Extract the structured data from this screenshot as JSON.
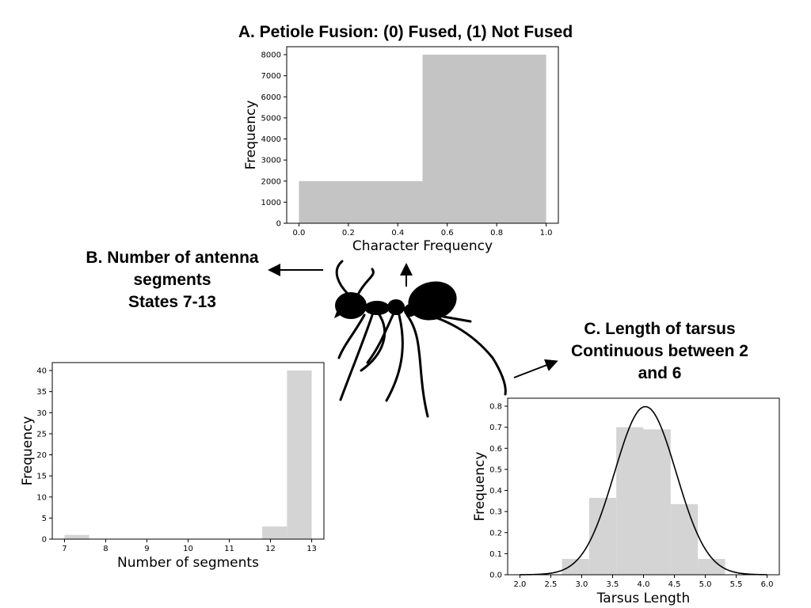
{
  "titles": {
    "a": "A. Petiole Fusion: (0) Fused, (1) Not Fused",
    "b": [
      "B. Number of antenna",
      "segments",
      "States 7-13"
    ],
    "c": [
      "C. Length of tarsus",
      "Continuous between 2",
      "and 6"
    ]
  },
  "illustration": {
    "icon": "ant-silhouette-icon",
    "color": "#000000"
  },
  "chart_data": [
    {
      "id": "A",
      "type": "bar",
      "xlabel": "Character Frequency",
      "ylabel": "Frequency",
      "xlim": [
        0.0,
        1.0
      ],
      "ylim": [
        0,
        8000
      ],
      "xticks": [
        "0.0",
        "0.2",
        "0.4",
        "0.6",
        "0.8",
        "1.0"
      ],
      "yticks": [
        "0",
        "1000",
        "2000",
        "3000",
        "4000",
        "5000",
        "6000",
        "7000",
        "8000"
      ],
      "bins": [
        {
          "x0": 0.0,
          "x1": 0.5,
          "value": 2000
        },
        {
          "x0": 0.5,
          "x1": 1.0,
          "value": 8000
        }
      ],
      "bar_color": "#c4c4c4"
    },
    {
      "id": "B",
      "type": "bar",
      "xlabel": "Number of segments",
      "ylabel": "Frequency",
      "xlim": [
        7,
        13
      ],
      "ylim": [
        0,
        40
      ],
      "xticks": [
        "7",
        "8",
        "9",
        "10",
        "11",
        "12",
        "13"
      ],
      "yticks": [
        "0",
        "5",
        "10",
        "15",
        "20",
        "25",
        "30",
        "35",
        "40"
      ],
      "bins": [
        {
          "x0": 7.0,
          "x1": 7.6,
          "value": 1
        },
        {
          "x0": 11.8,
          "x1": 12.4,
          "value": 3
        },
        {
          "x0": 12.4,
          "x1": 13.0,
          "value": 40
        }
      ],
      "bar_color": "#d4d4d4"
    },
    {
      "id": "C",
      "type": "bar",
      "xlabel": "Tarsus Length",
      "ylabel": "Frequency",
      "xlim": [
        2.0,
        6.0
      ],
      "ylim": [
        0.0,
        0.8
      ],
      "xticks": [
        "2.0",
        "2.5",
        "3.0",
        "3.5",
        "4.0",
        "4.5",
        "5.0",
        "5.5",
        "6.0"
      ],
      "yticks": [
        "0.0",
        "0.1",
        "0.2",
        "0.3",
        "0.4",
        "0.5",
        "0.6",
        "0.7",
        "0.8"
      ],
      "bins": [
        {
          "x0": 2.68,
          "x1": 3.12,
          "value": 0.075
        },
        {
          "x0": 3.12,
          "x1": 3.56,
          "value": 0.365
        },
        {
          "x0": 3.56,
          "x1": 4.0,
          "value": 0.7
        },
        {
          "x0": 4.0,
          "x1": 4.44,
          "value": 0.69
        },
        {
          "x0": 4.44,
          "x1": 4.88,
          "value": 0.335
        },
        {
          "x0": 4.88,
          "x1": 5.32,
          "value": 0.075
        }
      ],
      "bar_color": "#d4d4d4",
      "density_curve": {
        "type": "normal",
        "mean": 4.03,
        "sd": 0.5
      }
    }
  ]
}
